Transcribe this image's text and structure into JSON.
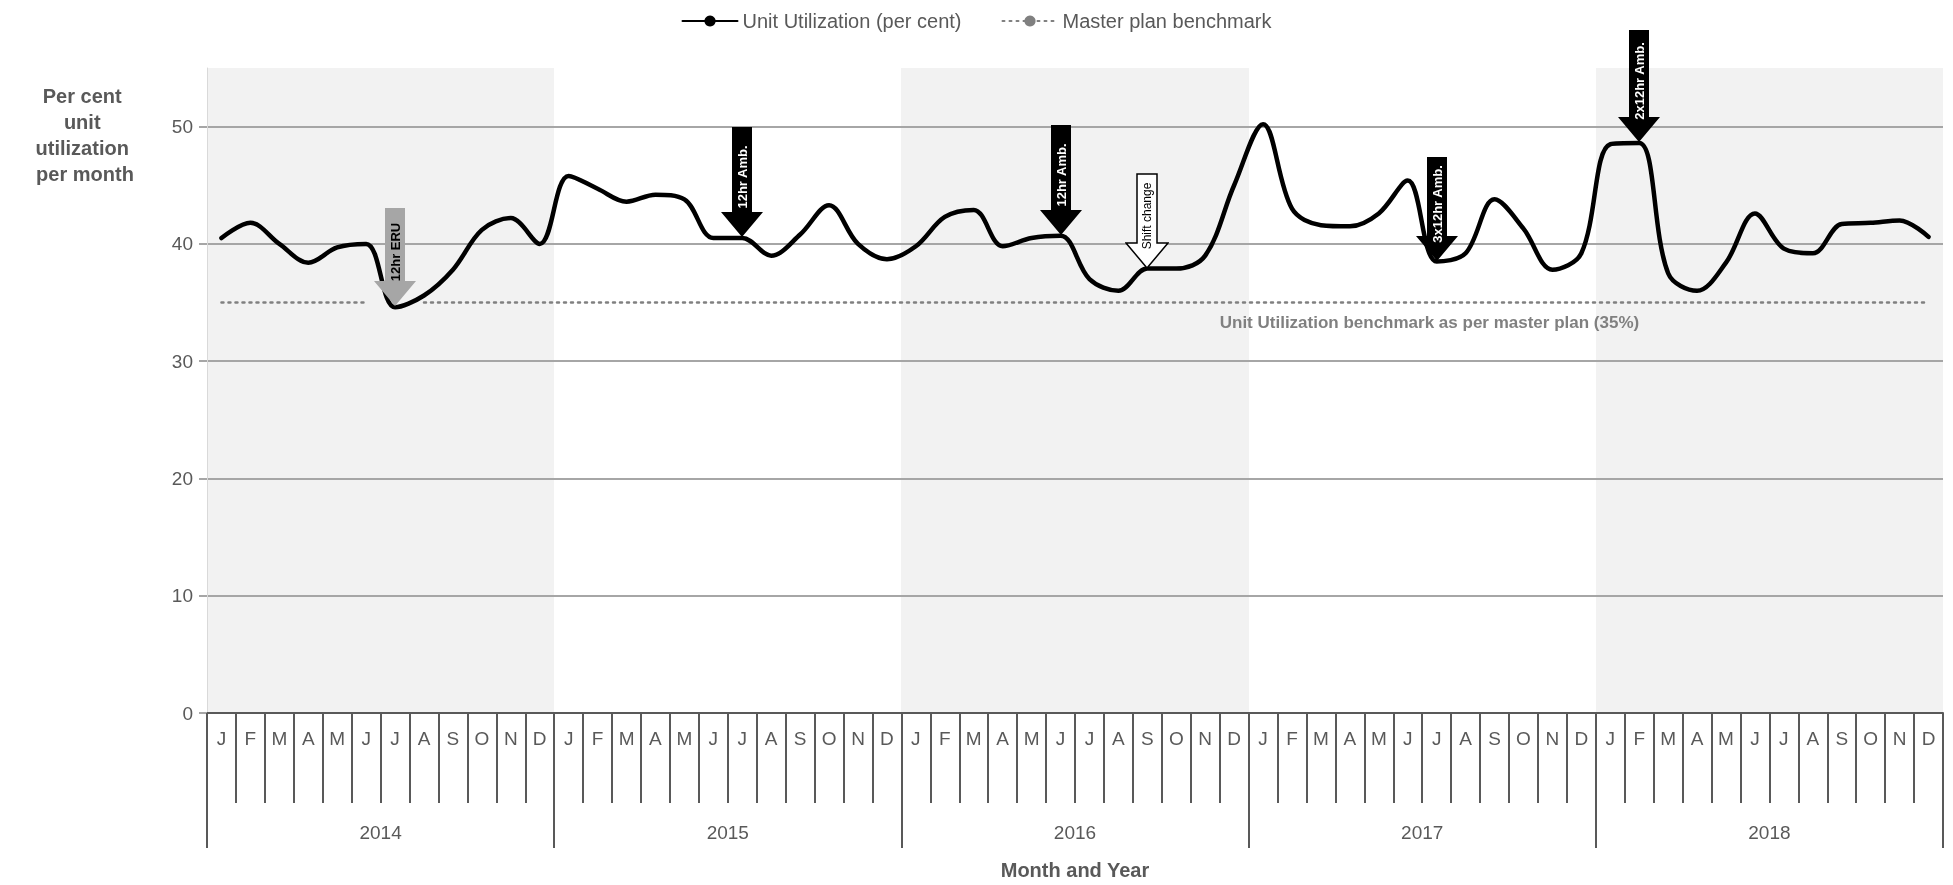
{
  "chart_data": {
    "type": "line",
    "xlabel": "Month and Year",
    "ylabel": "Per cent unit utilization per month",
    "categories": [
      "J",
      "F",
      "M",
      "A",
      "M",
      "J",
      "J",
      "A",
      "S",
      "O",
      "N",
      "D",
      "J",
      "F",
      "M",
      "A",
      "M",
      "J",
      "J",
      "A",
      "S",
      "O",
      "N",
      "D",
      "J",
      "F",
      "M",
      "A",
      "M",
      "J",
      "J",
      "A",
      "S",
      "O",
      "N",
      "D",
      "J",
      "F",
      "M",
      "A",
      "M",
      "J",
      "J",
      "A",
      "S",
      "O",
      "N",
      "D",
      "J",
      "F",
      "M",
      "A",
      "M",
      "J",
      "J",
      "A",
      "S",
      "O",
      "N",
      "D"
    ],
    "series": [
      {
        "name": "Unit Utilization (per cent)",
        "color": "#000000",
        "line_style": "solid",
        "values": [
          40.5,
          41.8,
          40,
          38.4,
          39.7,
          40,
          34.6,
          35.6,
          37.8,
          41.2,
          42.2,
          40,
          45.8,
          44.7,
          43.6,
          44.2,
          43.8,
          40.5,
          40.5,
          39,
          40.8,
          43.3,
          40,
          38.7,
          39.8,
          42.3,
          42.9,
          39.8,
          40.5,
          40.7,
          37,
          36,
          37.9,
          37.9,
          39,
          45,
          50.2,
          43,
          41.6,
          41.5,
          42.6,
          45.4,
          38.5,
          39.2,
          43.8,
          41.3,
          37.8,
          39.2,
          48.5,
          48.6,
          37.5,
          36,
          38.4,
          42.6,
          39.6,
          39.2,
          41.7,
          41.8,
          42,
          40.6
        ]
      },
      {
        "name": "Master plan benchmark",
        "color": "#808080",
        "line_style": "dotted",
        "values": [
          35,
          35,
          35,
          35,
          35,
          35,
          null,
          35,
          35,
          35,
          35,
          35,
          35,
          35,
          35,
          35,
          35,
          35,
          35,
          35,
          35,
          35,
          35,
          35,
          35,
          35,
          35,
          35,
          35,
          35,
          35,
          35,
          35,
          35,
          35,
          35,
          35,
          35,
          35,
          35,
          35,
          35,
          35,
          35,
          35,
          35,
          35,
          35,
          35,
          35,
          35,
          35,
          35,
          35,
          35,
          35,
          35,
          35,
          35,
          35
        ]
      }
    ],
    "annotations": [
      {
        "text": "12hr ERU",
        "y": 34.6
      },
      {
        "text": "12hr Amb.",
        "y": 40.5
      },
      {
        "text": "12hr Amb.",
        "y": 40.7
      },
      {
        "text": "Shift change",
        "y": 37.9
      },
      {
        "text": "3x12hr Amb.",
        "y": 38.5
      },
      {
        "text": "2x12hr Amb.",
        "y": 48.6
      },
      "Unit Utilization benchmark as per master plan (35%)"
    ],
    "x2lim": [
      2014,
      2019
    ],
    "x2ticks": [
      {
        "value": 2014.5,
        "label": "2014"
      },
      {
        "value": 2015.5,
        "label": "2015"
      },
      {
        "value": 2016.5,
        "label": "2016"
      },
      {
        "value": 2017.5,
        "label": "2017"
      },
      {
        "value": 2018.5,
        "label": "2018"
      }
    ],
    "ylim": [
      0,
      55
    ],
    "yticks": [
      0,
      10,
      20,
      30,
      40,
      50
    ],
    "grid": "y",
    "legend": "top",
    "marker": "none"
  }
}
